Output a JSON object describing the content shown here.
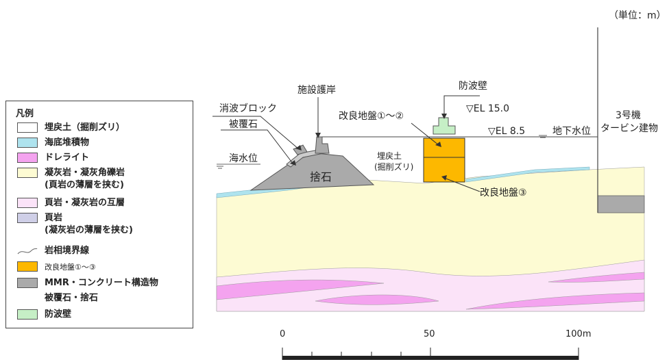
{
  "unit_label": "（単位：m）",
  "legend": {
    "title": "凡例",
    "items": [
      {
        "label": "埋戻土（掘削ズリ）",
        "color": "#ffffff"
      },
      {
        "label": "海底堆積物",
        "color": "#aee3ee"
      },
      {
        "label": "ドレライト",
        "color": "#f4a3ef"
      },
      {
        "label": "凝灰岩・凝灰角礫岩\n(頁岩の薄層を挟む)",
        "color": "#fdfbd3"
      },
      {
        "label": "頁岩・凝灰岩の互層",
        "color": "#fbe3f8"
      },
      {
        "label": "頁岩\n(凝灰岩の薄層を挟む)",
        "color": "#cfcfe7"
      },
      {
        "label": "岩相境界線",
        "color": "line"
      },
      {
        "label": "改良地盤①～③",
        "color": "#fdb800"
      },
      {
        "label": "MMR・コンクリート構造物",
        "color": "#aaaaaa"
      },
      {
        "label": "被覆石・捨石",
        "color": "none"
      },
      {
        "label": "防波壁",
        "color": "#c6efc6"
      }
    ]
  },
  "labels": {
    "seawall": "防波壁",
    "el_15": "▽EL 15.0",
    "facility_revetment": "施設護岸",
    "wave_block": "消波ブロック",
    "armor_stone": "被覆石",
    "improved_12": "改良地盤①～②",
    "sea_level": "海水位",
    "el_85": "▽EL 8.5",
    "groundwater": "地下水位",
    "rubble": "捨石",
    "backfill_1": "埋戻土",
    "backfill_2": "(掘削ズリ)",
    "improved_3": "改良地盤③",
    "building_1": "3号機",
    "building_2": "タービン建物"
  },
  "scale": {
    "ticks": [
      "0",
      "50",
      "100m"
    ]
  },
  "colors": {
    "sediment": "#aee3ee",
    "tuff": "#fdfbd3",
    "dolerite": "#f4a3ef",
    "shale_tuff": "#fbe3f8",
    "improved": "#fdb800",
    "concrete": "#aaaaaa",
    "seawall": "#c6efc6"
  }
}
